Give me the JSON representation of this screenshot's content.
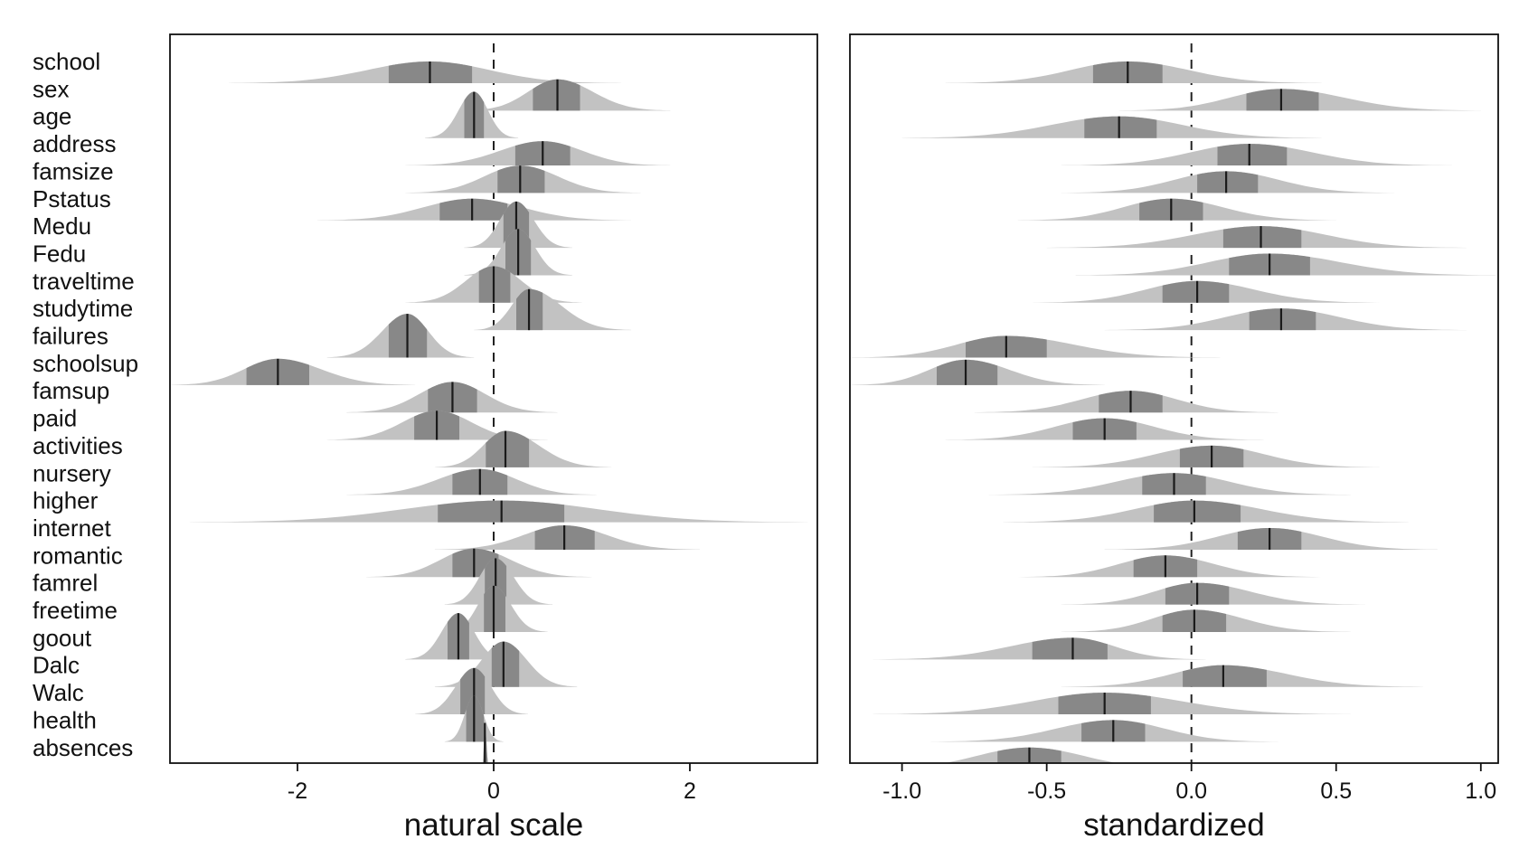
{
  "chart_data": [
    {
      "type": "ridgeline",
      "xlabel": "natural scale",
      "xlim": [
        -3.3,
        3.3
      ],
      "xticks": [
        -2,
        0,
        2
      ],
      "tick_labels": [
        "-2",
        "0",
        "2"
      ],
      "ref_line": 0,
      "variables": [
        "school",
        "sex",
        "age",
        "address",
        "famsize",
        "Pstatus",
        "Medu",
        "Fedu",
        "traveltime",
        "studytime",
        "failures",
        "schoolsup",
        "famsup",
        "paid",
        "activities",
        "nursery",
        "higher",
        "internet",
        "romantic",
        "famrel",
        "freetime",
        "goout",
        "Dalc",
        "Walc",
        "health",
        "absences"
      ],
      "median": [
        -0.65,
        0.65,
        -0.2,
        0.5,
        0.27,
        -0.22,
        0.23,
        0.25,
        0.0,
        0.36,
        -0.88,
        -2.2,
        -0.42,
        -0.58,
        0.12,
        -0.14,
        0.08,
        0.72,
        -0.2,
        0.02,
        0.0,
        -0.36,
        0.1,
        -0.2,
        -0.2,
        -0.09
      ],
      "inner": [
        [
          -1.07,
          -0.22
        ],
        [
          0.4,
          0.88
        ],
        [
          -0.3,
          -0.1
        ],
        [
          0.22,
          0.78
        ],
        [
          0.04,
          0.52
        ],
        [
          -0.55,
          0.14
        ],
        [
          0.1,
          0.36
        ],
        [
          0.12,
          0.38
        ],
        [
          -0.15,
          0.17
        ],
        [
          0.23,
          0.5
        ],
        [
          -1.07,
          -0.68
        ],
        [
          -2.52,
          -1.88
        ],
        [
          -0.67,
          -0.17
        ],
        [
          -0.81,
          -0.35
        ],
        [
          -0.08,
          0.36
        ],
        [
          -0.42,
          0.14
        ],
        [
          -0.57,
          0.72
        ],
        [
          0.42,
          1.03
        ],
        [
          -0.42,
          0.05
        ],
        [
          -0.09,
          0.13
        ],
        [
          -0.1,
          0.12
        ],
        [
          -0.47,
          -0.25
        ],
        [
          -0.02,
          0.26
        ],
        [
          -0.34,
          -0.09
        ],
        [
          -0.28,
          -0.1
        ],
        [
          -0.12,
          -0.06
        ]
      ],
      "outer": [
        [
          -2.7,
          1.3
        ],
        [
          -0.3,
          1.8
        ],
        [
          -0.7,
          0.25
        ],
        [
          -0.9,
          1.8
        ],
        [
          -0.9,
          1.5
        ],
        [
          -1.8,
          1.4
        ],
        [
          -0.3,
          0.8
        ],
        [
          -0.3,
          0.8
        ],
        [
          -0.9,
          0.9
        ],
        [
          -0.2,
          1.4
        ],
        [
          -1.7,
          -0.2
        ],
        [
          -3.3,
          -0.8
        ],
        [
          -1.5,
          0.65
        ],
        [
          -1.7,
          0.55
        ],
        [
          -0.6,
          1.2
        ],
        [
          -1.5,
          1.05
        ],
        [
          -3.1,
          3.2
        ],
        [
          -0.6,
          2.1
        ],
        [
          -1.3,
          1.0
        ],
        [
          -0.5,
          0.6
        ],
        [
          -0.5,
          0.55
        ],
        [
          -0.9,
          0.15
        ],
        [
          -0.6,
          0.85
        ],
        [
          -0.8,
          0.35
        ],
        [
          -0.5,
          0.1
        ],
        [
          -0.12,
          -0.04
        ]
      ]
    },
    {
      "type": "ridgeline",
      "xlabel": "standardized",
      "xlim": [
        -1.18,
        1.06
      ],
      "xticks": [
        -1.0,
        -0.5,
        0.0,
        0.5,
        1.0
      ],
      "tick_labels": [
        "-1.0",
        "-0.5",
        "0.0",
        "0.5",
        "1.0"
      ],
      "ref_line": 0,
      "variables": [
        "school",
        "sex",
        "age",
        "address",
        "famsize",
        "Pstatus",
        "Medu",
        "Fedu",
        "traveltime",
        "studytime",
        "failures",
        "schoolsup",
        "famsup",
        "paid",
        "activities",
        "nursery",
        "higher",
        "internet",
        "romantic",
        "famrel",
        "freetime",
        "goout",
        "Dalc",
        "Walc",
        "health",
        "absences"
      ],
      "median": [
        -0.22,
        0.31,
        -0.25,
        0.2,
        0.12,
        -0.07,
        0.24,
        0.27,
        0.02,
        0.31,
        -0.64,
        -0.78,
        -0.21,
        -0.3,
        0.07,
        -0.06,
        0.01,
        0.27,
        -0.09,
        0.02,
        0.01,
        -0.41,
        0.11,
        -0.3,
        -0.27,
        -0.56
      ],
      "inner": [
        [
          -0.34,
          -0.1
        ],
        [
          0.19,
          0.44
        ],
        [
          -0.37,
          -0.12
        ],
        [
          0.09,
          0.33
        ],
        [
          0.02,
          0.23
        ],
        [
          -0.18,
          0.04
        ],
        [
          0.11,
          0.38
        ],
        [
          0.13,
          0.41
        ],
        [
          -0.1,
          0.13
        ],
        [
          0.2,
          0.43
        ],
        [
          -0.78,
          -0.5
        ],
        [
          -0.88,
          -0.67
        ],
        [
          -0.32,
          -0.1
        ],
        [
          -0.41,
          -0.19
        ],
        [
          -0.04,
          0.18
        ],
        [
          -0.17,
          0.05
        ],
        [
          -0.13,
          0.17
        ],
        [
          0.16,
          0.38
        ],
        [
          -0.2,
          0.02
        ],
        [
          -0.09,
          0.13
        ],
        [
          -0.1,
          0.12
        ],
        [
          -0.55,
          -0.29
        ],
        [
          -0.03,
          0.26
        ],
        [
          -0.46,
          -0.14
        ],
        [
          -0.38,
          -0.16
        ],
        [
          -0.67,
          -0.45
        ]
      ],
      "outer": [
        [
          -0.85,
          0.45
        ],
        [
          -0.25,
          1.0
        ],
        [
          -1.0,
          0.45
        ],
        [
          -0.45,
          0.9
        ],
        [
          -0.45,
          0.7
        ],
        [
          -0.6,
          0.5
        ],
        [
          -0.5,
          0.95
        ],
        [
          -0.4,
          1.05
        ],
        [
          -0.55,
          0.65
        ],
        [
          -0.3,
          0.95
        ],
        [
          -1.18,
          0.1
        ],
        [
          -1.18,
          -0.3
        ],
        [
          -0.75,
          0.3
        ],
        [
          -0.85,
          0.25
        ],
        [
          -0.55,
          0.65
        ],
        [
          -0.7,
          0.55
        ],
        [
          -0.65,
          0.75
        ],
        [
          -0.3,
          0.85
        ],
        [
          -0.6,
          0.45
        ],
        [
          -0.45,
          0.6
        ],
        [
          -0.45,
          0.55
        ],
        [
          -1.1,
          0.05
        ],
        [
          -0.45,
          0.8
        ],
        [
          -1.1,
          0.55
        ],
        [
          -0.9,
          0.3
        ],
        [
          -1.15,
          0.05
        ]
      ]
    }
  ]
}
